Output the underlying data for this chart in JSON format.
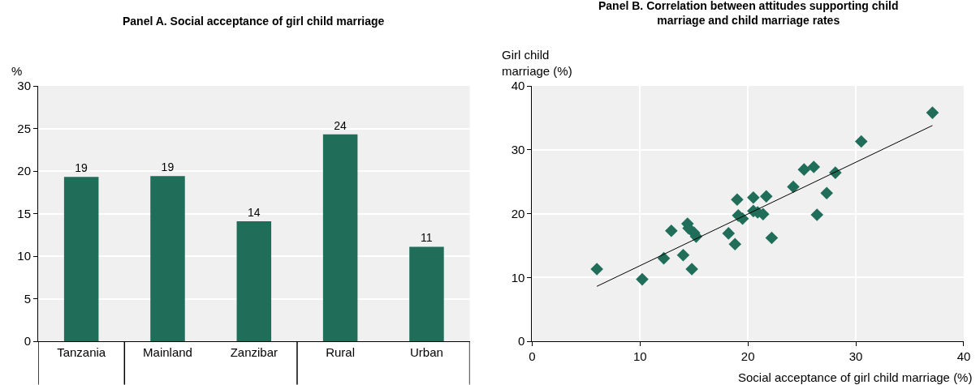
{
  "chart_data": [
    {
      "type": "bar",
      "title": "Panel A. Social acceptance of girl child marriage",
      "ylabel": "%",
      "categories": [
        "Tanzania",
        "Mainland",
        "Zanzibar",
        "Rural",
        "Urban"
      ],
      "values": [
        19.3,
        19.4,
        14.1,
        24.3,
        11.1
      ],
      "value_labels": [
        "19",
        "19",
        "14",
        "24",
        "11"
      ],
      "color": "#206e5a",
      "ylim": [
        0,
        30
      ],
      "yticks": [
        0,
        5,
        10,
        15,
        20,
        25,
        30
      ],
      "grid": true
    },
    {
      "type": "scatter",
      "title": "Panel B. Correlation between attitudes supporting child marriage and child marriage rates",
      "xlabel": "Social acceptance of girl child marriage (%)",
      "ylabel": "Girl child marriage (%)",
      "series": [
        {
          "type": "scatter",
          "color": "#206e5a",
          "marker": "diamond",
          "x": [
            6.0,
            10.2,
            12.2,
            12.9,
            14.0,
            14.4,
            14.5,
            15.0,
            15.2,
            14.8,
            18.2,
            18.8,
            19.0,
            19.1,
            19.5,
            20.5,
            20.5,
            20.9,
            21.4,
            21.7,
            22.2,
            24.2,
            25.2,
            26.1,
            28.1,
            27.3,
            26.4,
            30.5,
            37.1
          ],
          "values": [
            11.3,
            9.7,
            13.0,
            17.3,
            13.5,
            18.4,
            17.7,
            17.0,
            16.4,
            11.3,
            16.9,
            15.2,
            22.2,
            19.7,
            19.2,
            22.5,
            20.4,
            20.2,
            19.9,
            22.7,
            16.2,
            24.2,
            26.9,
            27.3,
            26.4,
            23.2,
            19.8,
            31.3,
            35.8
          ]
        },
        {
          "type": "line",
          "color": "#000000",
          "x": [
            6.0,
            37.1
          ],
          "values": [
            8.6,
            33.8
          ]
        }
      ],
      "xlim": [
        0,
        40
      ],
      "xticks": [
        0,
        10,
        20,
        30,
        40
      ],
      "ylim": [
        0,
        40
      ],
      "yticks": [
        0,
        10,
        20,
        30,
        40
      ],
      "grid": true
    }
  ]
}
